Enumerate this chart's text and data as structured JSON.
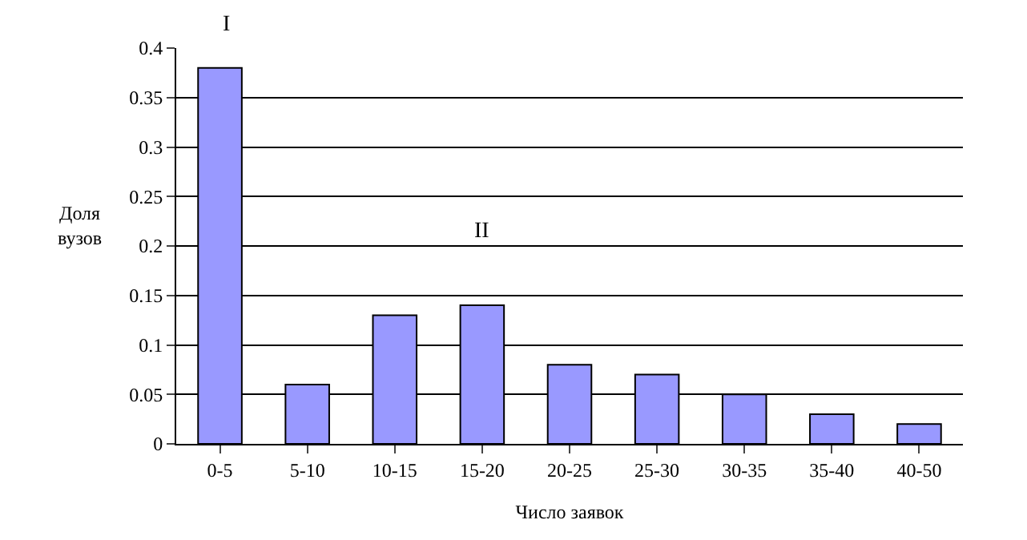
{
  "chart_data": {
    "type": "bar",
    "xlabel": "Число заявок",
    "ylabel": "Доля\nвузов",
    "categories": [
      "0-5",
      "5-10",
      "10-15",
      "15-20",
      "20-25",
      "25-30",
      "30-35",
      "35-40",
      "40-50"
    ],
    "values": [
      0.38,
      0.06,
      0.13,
      0.14,
      0.08,
      0.07,
      0.05,
      0.03,
      0.02
    ],
    "color": "#9999ff",
    "ylim": [
      0,
      0.4
    ],
    "yticks": [
      0,
      0.05,
      0.1,
      0.15,
      0.2,
      0.25,
      0.3,
      0.35,
      0.4
    ],
    "grid": "y",
    "annotations": [
      "I",
      "II"
    ]
  }
}
